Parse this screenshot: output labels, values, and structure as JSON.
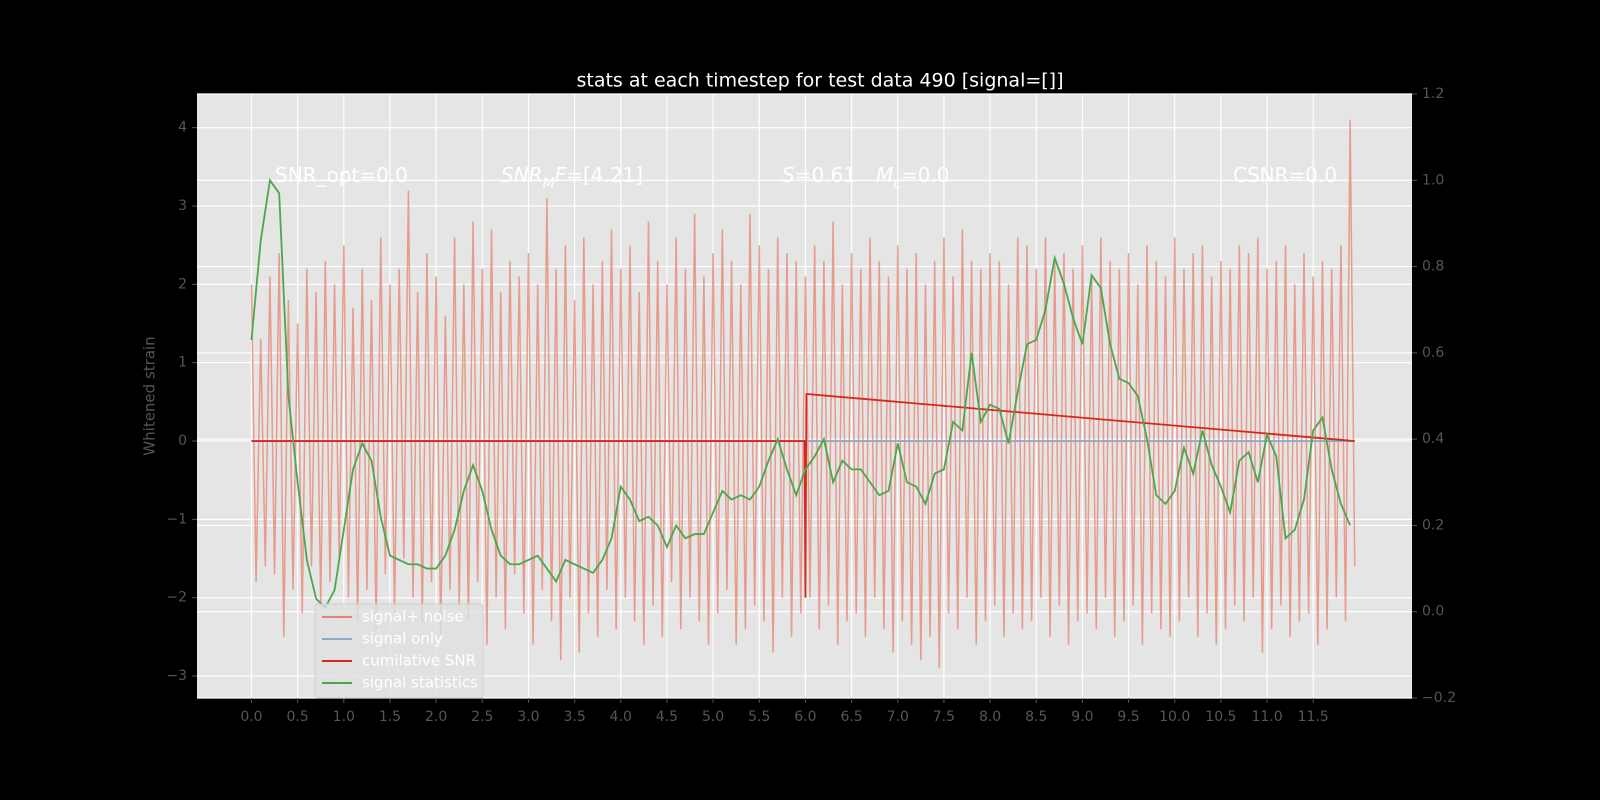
{
  "chart_data": {
    "type": "line",
    "title": "stats at each timestep for test data 490 [signal=[]]",
    "ylabel": "Whitened strain",
    "xlim": [
      -0.59,
      12.57
    ],
    "ylim": [
      -3.28,
      4.43
    ],
    "y2lim": [
      -0.2,
      1.2
    ],
    "xticks": [
      {
        "value": 0,
        "label": "0.0"
      },
      {
        "value": 0.5,
        "label": "0.5"
      },
      {
        "value": 1,
        "label": "1.0"
      },
      {
        "value": 1.5,
        "label": "1.5"
      },
      {
        "value": 2,
        "label": "2.0"
      },
      {
        "value": 2.5,
        "label": "2.5"
      },
      {
        "value": 3,
        "label": "3.0"
      },
      {
        "value": 3.5,
        "label": "3.5"
      },
      {
        "value": 4,
        "label": "4.0"
      },
      {
        "value": 4.5,
        "label": "4.5"
      },
      {
        "value": 5,
        "label": "5.0"
      },
      {
        "value": 5.5,
        "label": "5.5"
      },
      {
        "value": 6,
        "label": "6.0"
      },
      {
        "value": 6.5,
        "label": "6.5"
      },
      {
        "value": 7,
        "label": "7.0"
      },
      {
        "value": 7.5,
        "label": "7.5"
      },
      {
        "value": 8,
        "label": "8.0"
      },
      {
        "value": 8.5,
        "label": "8.5"
      },
      {
        "value": 9,
        "label": "9.0"
      },
      {
        "value": 9.5,
        "label": "9.5"
      },
      {
        "value": 10,
        "label": "10.0"
      },
      {
        "value": 10.5,
        "label": "10.5"
      },
      {
        "value": 11,
        "label": "11.0"
      },
      {
        "value": 11.5,
        "label": "11.5"
      }
    ],
    "yticks": [
      {
        "value": -3,
        "label": "−3"
      },
      {
        "value": -2,
        "label": "−2"
      },
      {
        "value": -1,
        "label": "−1"
      },
      0,
      1,
      2,
      3,
      4
    ],
    "y2ticks": [
      {
        "value": -0.2,
        "label": "−0.2"
      },
      {
        "value": 0,
        "label": "0.0"
      },
      0.2,
      0.4,
      0.6,
      0.8,
      {
        "value": 1,
        "label": "1.0"
      },
      1.2
    ],
    "grid": true,
    "legend": "lower left",
    "annotations": [
      {
        "parts": [
          {
            "text": "SNR_opt=0.0"
          }
        ]
      },
      {
        "parts": [
          {
            "text": "SNR",
            "italic": true
          },
          {
            "text": "M",
            "italic": true,
            "sub": true
          },
          {
            "text": "F",
            "italic": true
          },
          {
            "text": "=[4.21]"
          }
        ]
      },
      {
        "parts": [
          {
            "text": "S",
            "italic": true
          },
          {
            "text": "=0.61"
          }
        ]
      },
      {
        "parts": [
          {
            "text": "M",
            "italic": true
          },
          {
            "text": "c",
            "italic": true,
            "sub": true
          },
          {
            "text": "=0.0"
          }
        ]
      },
      {
        "parts": [
          {
            "text": "CSNR=0.0"
          }
        ]
      }
    ],
    "series": [
      {
        "name": "signal+ noise",
        "color": "#e5826e",
        "x": [
          0,
          0.05,
          0.1,
          0.15,
          0.2,
          0.25,
          0.3,
          0.35,
          0.4,
          0.45,
          0.5,
          0.55,
          0.6,
          0.65,
          0.7,
          0.75,
          0.8,
          0.85,
          0.9,
          0.95,
          1,
          1.05,
          1.1,
          1.15,
          1.2,
          1.25,
          1.3,
          1.35,
          1.4,
          1.45,
          1.5,
          1.55,
          1.6,
          1.65,
          1.7,
          1.75,
          1.8,
          1.85,
          1.9,
          1.95,
          2,
          2.05,
          2.1,
          2.15,
          2.2,
          2.25,
          2.3,
          2.35,
          2.4,
          2.45,
          2.5,
          2.55,
          2.6,
          2.65,
          2.7,
          2.75,
          2.8,
          2.85,
          2.9,
          2.95,
          3,
          3.05,
          3.1,
          3.15,
          3.2,
          3.25,
          3.3,
          3.35,
          3.4,
          3.45,
          3.5,
          3.55,
          3.6,
          3.65,
          3.7,
          3.75,
          3.8,
          3.85,
          3.9,
          3.95,
          4,
          4.05,
          4.1,
          4.15,
          4.2,
          4.25,
          4.3,
          4.35,
          4.4,
          4.45,
          4.5,
          4.55,
          4.6,
          4.65,
          4.7,
          4.75,
          4.8,
          4.85,
          4.9,
          4.95,
          5,
          5.05,
          5.1,
          5.15,
          5.2,
          5.25,
          5.3,
          5.35,
          5.4,
          5.45,
          5.5,
          5.55,
          5.6,
          5.65,
          5.7,
          5.75,
          5.8,
          5.85,
          5.9,
          5.95,
          6,
          6.05,
          6.1,
          6.15,
          6.2,
          6.25,
          6.3,
          6.35,
          6.4,
          6.45,
          6.5,
          6.55,
          6.6,
          6.65,
          6.7,
          6.75,
          6.8,
          6.85,
          6.9,
          6.95,
          7,
          7.05,
          7.1,
          7.15,
          7.2,
          7.25,
          7.3,
          7.35,
          7.4,
          7.45,
          7.5,
          7.55,
          7.6,
          7.65,
          7.7,
          7.75,
          7.8,
          7.85,
          7.9,
          7.95,
          8,
          8.05,
          8.1,
          8.15,
          8.2,
          8.25,
          8.3,
          8.35,
          8.4,
          8.45,
          8.5,
          8.55,
          8.6,
          8.65,
          8.7,
          8.75,
          8.8,
          8.85,
          8.9,
          8.95,
          9,
          9.05,
          9.1,
          9.15,
          9.2,
          9.25,
          9.3,
          9.35,
          9.4,
          9.45,
          9.5,
          9.55,
          9.6,
          9.65,
          9.7,
          9.75,
          9.8,
          9.85,
          9.9,
          9.95,
          10,
          10.05,
          10.1,
          10.15,
          10.2,
          10.25,
          10.3,
          10.35,
          10.4,
          10.45,
          10.5,
          10.55,
          10.6,
          10.65,
          10.7,
          10.75,
          10.8,
          10.85,
          10.9,
          10.95,
          11,
          11.05,
          11.1,
          11.15,
          11.2,
          11.25,
          11.3,
          11.35,
          11.4,
          11.45,
          11.5,
          11.55,
          11.6,
          11.65,
          11.7,
          11.75,
          11.8,
          11.85,
          11.9,
          11.95
        ],
        "values": [
          2.0,
          -1.8,
          1.3,
          -1.6,
          2.1,
          -1.7,
          2.4,
          -2.5,
          1.8,
          -1.9,
          1.5,
          -2.2,
          2.2,
          -1.6,
          1.9,
          -2.1,
          2.3,
          -1.8,
          2.0,
          -1.5,
          2.5,
          -2.0,
          1.7,
          -2.3,
          2.2,
          -1.9,
          1.8,
          -2.4,
          2.6,
          -1.7,
          2.0,
          -2.2,
          2.2,
          -1.5,
          3.2,
          -2.0,
          1.9,
          -2.3,
          2.4,
          -1.8,
          2.1,
          -2.5,
          1.6,
          -1.9,
          2.6,
          -2.1,
          2.0,
          -2.3,
          2.8,
          -1.8,
          2.2,
          -2.6,
          2.7,
          -2.0,
          1.9,
          -2.4,
          2.3,
          -1.7,
          2.1,
          -2.2,
          2.4,
          -2.6,
          2.0,
          -1.9,
          3.1,
          -2.3,
          2.2,
          -2.8,
          2.5,
          -2.0,
          1.8,
          -2.7,
          2.6,
          -2.2,
          2.0,
          -2.5,
          2.3,
          -1.9,
          2.7,
          -2.4,
          2.2,
          -2.0,
          2.5,
          -2.3,
          1.9,
          -2.6,
          2.8,
          -2.1,
          2.3,
          -2.5,
          2.0,
          -1.8,
          2.6,
          -2.4,
          2.2,
          -2.0,
          2.9,
          -2.3,
          2.1,
          -2.6,
          2.4,
          -2.2,
          2.7,
          -1.9,
          2.3,
          -2.6,
          2.0,
          -2.4,
          2.9,
          -2.1,
          2.5,
          -2.3,
          2.2,
          -2.7,
          2.6,
          -2.0,
          2.4,
          -2.5,
          2.3,
          -2.2,
          2.1,
          -2.0,
          2.5,
          -2.4,
          2.3,
          -2.1,
          2.8,
          -2.6,
          2.0,
          -2.3,
          2.4,
          -2.2,
          2.2,
          -2.5,
          2.6,
          -2.0,
          2.3,
          -2.4,
          2.1,
          -2.7,
          2.5,
          -2.3,
          2.2,
          -2.6,
          2.4,
          -2.8,
          2.0,
          -2.5,
          2.3,
          -2.9,
          2.6,
          -2.2,
          2.1,
          -2.4,
          2.7,
          -2.0,
          2.3,
          -2.6,
          2.2,
          -2.3,
          2.4,
          -2.1,
          2.3,
          -2.5,
          2.0,
          -2.2,
          2.6,
          -2.4,
          2.5,
          -2.3,
          2.2,
          -2.0,
          2.6,
          -2.5,
          2.3,
          -2.1,
          2.4,
          -2.6,
          2.2,
          -2.3,
          2.5,
          -2.2,
          2.1,
          -2.4,
          2.6,
          -2.0,
          2.3,
          -2.5,
          2.2,
          -2.3,
          2.4,
          -2.1,
          2.0,
          -2.6,
          2.5,
          -2.2,
          2.3,
          -2.4,
          2.1,
          -2.5,
          2.6,
          -2.3,
          2.2,
          -2.0,
          2.4,
          -2.5,
          2.5,
          -2.2,
          2.1,
          -2.6,
          2.3,
          -2.4,
          2.2,
          -2.1,
          2.5,
          -2.3,
          2.4,
          -2.0,
          2.6,
          -2.7,
          2.2,
          -2.4,
          2.3,
          -2.1,
          2.5,
          -2.5,
          2.0,
          -2.3,
          2.4,
          -2.2,
          2.1,
          -2.6,
          2.3,
          -2.4,
          2.2,
          -2.0,
          2.5,
          -2.3,
          4.1,
          -1.6
        ]
      },
      {
        "name": "signal only",
        "color": "#8eaacb",
        "x": [
          0,
          11.95
        ],
        "values": [
          0,
          0
        ]
      },
      {
        "name": "cumilative SNR",
        "color": "#d6281c",
        "x": [
          0,
          5.99,
          6.0,
          6.01,
          11.95
        ],
        "values": [
          0,
          0,
          -2.0,
          0.6,
          0
        ]
      },
      {
        "name": "signal statistics",
        "color": "#4ca64c",
        "axis": "y2",
        "x": [
          0,
          0.1,
          0.2,
          0.3,
          0.4,
          0.5,
          0.6,
          0.7,
          0.8,
          0.9,
          1,
          1.1,
          1.2,
          1.3,
          1.4,
          1.5,
          1.6,
          1.7,
          1.8,
          1.9,
          2,
          2.1,
          2.2,
          2.3,
          2.4,
          2.5,
          2.6,
          2.7,
          2.8,
          2.9,
          3,
          3.1,
          3.2,
          3.3,
          3.4,
          3.5,
          3.6,
          3.7,
          3.8,
          3.9,
          4,
          4.1,
          4.2,
          4.3,
          4.4,
          4.5,
          4.6,
          4.7,
          4.8,
          4.9,
          5,
          5.1,
          5.2,
          5.3,
          5.4,
          5.5,
          5.6,
          5.7,
          5.8,
          5.9,
          6,
          6.1,
          6.2,
          6.3,
          6.4,
          6.5,
          6.6,
          6.7,
          6.8,
          6.9,
          7,
          7.1,
          7.2,
          7.3,
          7.4,
          7.5,
          7.6,
          7.7,
          7.8,
          7.9,
          8,
          8.1,
          8.2,
          8.3,
          8.4,
          8.5,
          8.6,
          8.7,
          8.8,
          8.9,
          9,
          9.1,
          9.2,
          9.3,
          9.4,
          9.5,
          9.6,
          9.7,
          9.8,
          9.9,
          10,
          10.1,
          10.2,
          10.3,
          10.4,
          10.5,
          10.6,
          10.7,
          10.8,
          10.9,
          11,
          11.1,
          11.2,
          11.3,
          11.4,
          11.5,
          11.6,
          11.7,
          11.8,
          11.9
        ],
        "values": [
          0.63,
          0.86,
          1.0,
          0.97,
          0.5,
          0.3,
          0.12,
          0.03,
          0.01,
          0.05,
          0.19,
          0.33,
          0.39,
          0.35,
          0.22,
          0.13,
          0.12,
          0.11,
          0.11,
          0.1,
          0.1,
          0.13,
          0.19,
          0.28,
          0.34,
          0.28,
          0.19,
          0.13,
          0.11,
          0.11,
          0.12,
          0.13,
          0.1,
          0.07,
          0.12,
          0.11,
          0.1,
          0.09,
          0.12,
          0.17,
          0.29,
          0.26,
          0.21,
          0.22,
          0.2,
          0.15,
          0.2,
          0.17,
          0.18,
          0.18,
          0.23,
          0.28,
          0.26,
          0.27,
          0.26,
          0.29,
          0.35,
          0.4,
          0.33,
          0.27,
          0.33,
          0.36,
          0.4,
          0.3,
          0.35,
          0.33,
          0.33,
          0.3,
          0.27,
          0.28,
          0.39,
          0.3,
          0.29,
          0.25,
          0.32,
          0.33,
          0.44,
          0.42,
          0.6,
          0.44,
          0.48,
          0.47,
          0.39,
          0.51,
          0.62,
          0.63,
          0.7,
          0.82,
          0.76,
          0.68,
          0.62,
          0.78,
          0.75,
          0.62,
          0.54,
          0.53,
          0.5,
          0.4,
          0.27,
          0.25,
          0.28,
          0.38,
          0.32,
          0.42,
          0.34,
          0.29,
          0.23,
          0.35,
          0.37,
          0.3,
          0.41,
          0.36,
          0.17,
          0.19,
          0.26,
          0.42,
          0.45,
          0.33,
          0.25,
          0.2
        ]
      }
    ]
  }
}
